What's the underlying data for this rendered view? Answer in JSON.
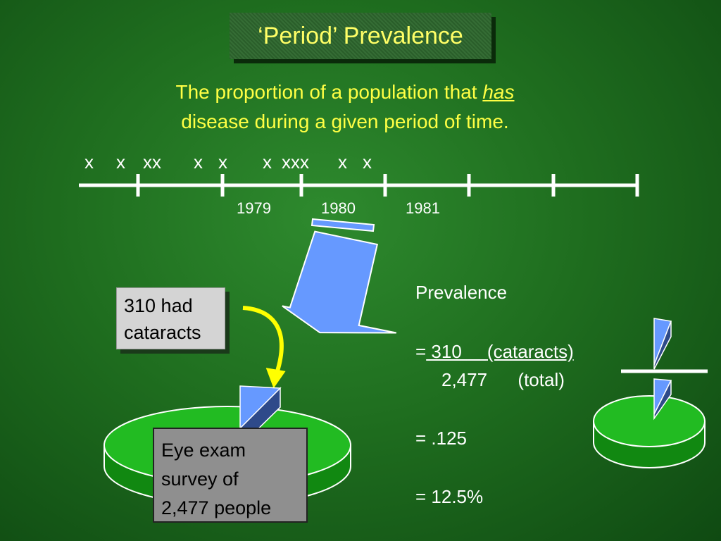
{
  "title": "‘Period’ Prevalence",
  "definition": {
    "line1_before": "The proportion of a population that ",
    "line1_emphasis": "has",
    "line2": "disease  during a given period of time."
  },
  "timeline": {
    "case_marks": [
      "x",
      "x",
      "xx",
      "x",
      "x",
      "x",
      "xxx",
      "x",
      "x"
    ],
    "years": [
      "1979",
      "1980",
      "1981"
    ]
  },
  "cataract_box": {
    "line1": "310 had",
    "line2": "cataracts"
  },
  "survey_box": {
    "line1": "Eye exam",
    "line2": "survey of",
    "line3": "2,477 people"
  },
  "prevalence": {
    "heading": "Prevalence",
    "numerator_prefix": "=",
    "numerator_value": " 310 ",
    "numerator_label": "(cataracts)",
    "denominator_value": "2,477",
    "denominator_label": "(total)",
    "ratio": "= .125",
    "percent": "= 12.5%"
  },
  "colors": {
    "title_text": "#ffff66",
    "subtitle_text": "#ffff44",
    "arrow_fill": "#6699ff",
    "pie_green": "#22bb22",
    "pie_slice": "#6699ff",
    "pie_slice_side": "#2e4a8a",
    "curve_arrow": "#ffff00"
  }
}
